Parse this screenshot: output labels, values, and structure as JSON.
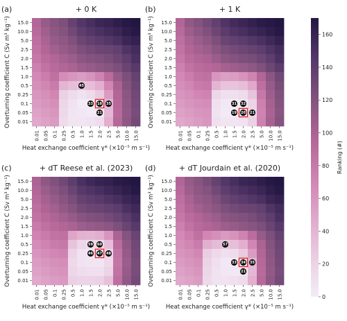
{
  "chart_data": {
    "type": "heatmap",
    "shared": {
      "x_tick_labels": [
        "0.01",
        "0.05",
        "0.1",
        "0.25",
        "0.5",
        "1.0",
        "1.5",
        "2.0",
        "2.5",
        "5.0",
        "10.0",
        "15.0"
      ],
      "y_tick_labels": [
        "15.0",
        "10.0",
        "5.0",
        "2.5",
        "2.0",
        "1.5",
        "1.0",
        "0.5",
        "0.25",
        "0.1",
        "0.05",
        "0.01"
      ],
      "xlabel": "Heat exchange coefficient γ* (×10⁻⁵ m s⁻¹)",
      "ylabel": "Overturning coefficient C (Sv m³ kg⁻¹)",
      "colorbar": {
        "label": "Ranking (#)",
        "ticks": [
          "0",
          "20",
          "40",
          "60",
          "80",
          "100",
          "120",
          "140",
          "160"
        ],
        "range": [
          0,
          170
        ],
        "low_color": "#f3ecf7",
        "mid_color": "#c66f9e",
        "high_color": "#231643"
      }
    },
    "panels": [
      {
        "tag": "(a)",
        "title": "+ 0 K",
        "annotations": [
          {
            "x": "1.0",
            "y": "0.5",
            "label": "45"
          },
          {
            "x": "1.5",
            "y": "0.1",
            "label": "33"
          },
          {
            "x": "2.0",
            "y": "0.1",
            "label": "18",
            "highlight": true
          },
          {
            "x": "2.5",
            "y": "0.1",
            "label": "35"
          },
          {
            "x": "2.0",
            "y": "0.05",
            "label": "21"
          }
        ],
        "values": [
          [
            95,
            110,
            118,
            124,
            136,
            146,
            152,
            158,
            160,
            164,
            168,
            170
          ],
          [
            92,
            105,
            114,
            120,
            130,
            140,
            146,
            150,
            154,
            158,
            164,
            168
          ],
          [
            88,
            100,
            110,
            114,
            122,
            132,
            138,
            142,
            146,
            150,
            158,
            162
          ],
          [
            84,
            96,
            104,
            110,
            116,
            124,
            128,
            132,
            134,
            138,
            148,
            154
          ],
          [
            80,
            90,
            96,
            102,
            108,
            116,
            120,
            122,
            126,
            132,
            140,
            150
          ],
          [
            74,
            84,
            92,
            96,
            100,
            106,
            110,
            114,
            118,
            124,
            134,
            144
          ],
          [
            68,
            76,
            86,
            66,
            60,
            56,
            62,
            72,
            90,
            110,
            124,
            136
          ],
          [
            64,
            70,
            78,
            40,
            34,
            30,
            34,
            44,
            70,
            100,
            120,
            132
          ],
          [
            60,
            64,
            70,
            22,
            14,
            8,
            14,
            26,
            56,
            96,
            116,
            130
          ],
          [
            56,
            60,
            64,
            18,
            8,
            2,
            1,
            2,
            40,
            94,
            114,
            128
          ],
          [
            52,
            56,
            60,
            16,
            6,
            3,
            2,
            4,
            38,
            92,
            112,
            126
          ],
          [
            48,
            52,
            56,
            14,
            6,
            6,
            8,
            12,
            44,
            94,
            114,
            128
          ]
        ]
      },
      {
        "tag": "(b)",
        "title": "+ 1 K",
        "annotations": [
          {
            "x": "1.5",
            "y": "0.1",
            "label": "31"
          },
          {
            "x": "2.0",
            "y": "0.1",
            "label": "32"
          },
          {
            "x": "1.5",
            "y": "0.05",
            "label": "19"
          },
          {
            "x": "2.0",
            "y": "0.05",
            "label": "20",
            "highlight": true
          },
          {
            "x": "2.5",
            "y": "0.05",
            "label": "21"
          }
        ],
        "values": [
          [
            96,
            112,
            120,
            128,
            138,
            148,
            154,
            158,
            162,
            166,
            168,
            170
          ],
          [
            92,
            106,
            114,
            122,
            132,
            142,
            148,
            152,
            156,
            160,
            164,
            168
          ],
          [
            88,
            100,
            108,
            114,
            124,
            134,
            138,
            142,
            146,
            150,
            156,
            162
          ],
          [
            84,
            96,
            102,
            108,
            116,
            124,
            128,
            132,
            136,
            140,
            148,
            154
          ],
          [
            80,
            90,
            96,
            100,
            108,
            116,
            120,
            124,
            126,
            132,
            140,
            150
          ],
          [
            74,
            84,
            90,
            94,
            96,
            102,
            106,
            110,
            114,
            122,
            132,
            142
          ],
          [
            68,
            76,
            84,
            86,
            60,
            54,
            56,
            62,
            72,
            96,
            116,
            130
          ],
          [
            64,
            70,
            78,
            80,
            40,
            30,
            30,
            34,
            48,
            88,
            110,
            126
          ],
          [
            60,
            64,
            70,
            72,
            18,
            10,
            10,
            14,
            30,
            80,
            106,
            122
          ],
          [
            56,
            60,
            64,
            66,
            10,
            3,
            2,
            4,
            20,
            74,
            102,
            120
          ],
          [
            52,
            56,
            60,
            62,
            8,
            2,
            1,
            2,
            18,
            72,
            100,
            118
          ],
          [
            48,
            52,
            56,
            60,
            10,
            6,
            6,
            8,
            22,
            74,
            102,
            120
          ]
        ]
      },
      {
        "tag": "(c)",
        "title": "+ dT Reese et al. (2023)",
        "annotations": [
          {
            "x": "1.5",
            "y": "0.5",
            "label": "59"
          },
          {
            "x": "2.0",
            "y": "0.5",
            "label": "60"
          },
          {
            "x": "1.5",
            "y": "0.25",
            "label": "46"
          },
          {
            "x": "2.0",
            "y": "0.25",
            "label": "47",
            "highlight": true
          },
          {
            "x": "2.5",
            "y": "0.25",
            "label": "48"
          }
        ],
        "values": [
          [
            100,
            114,
            122,
            130,
            140,
            150,
            156,
            160,
            162,
            166,
            168,
            170
          ],
          [
            96,
            108,
            116,
            124,
            134,
            144,
            148,
            152,
            156,
            160,
            164,
            168
          ],
          [
            92,
            102,
            110,
            118,
            126,
            136,
            140,
            144,
            148,
            152,
            158,
            162
          ],
          [
            88,
            98,
            104,
            112,
            120,
            128,
            132,
            134,
            138,
            142,
            150,
            156
          ],
          [
            84,
            92,
            98,
            104,
            110,
            118,
            122,
            124,
            128,
            134,
            142,
            150
          ],
          [
            78,
            86,
            92,
            96,
            100,
            106,
            110,
            112,
            116,
            124,
            134,
            144
          ],
          [
            72,
            78,
            84,
            86,
            50,
            42,
            40,
            44,
            60,
            100,
            120,
            134
          ],
          [
            66,
            72,
            78,
            80,
            30,
            18,
            14,
            16,
            34,
            90,
            114,
            130
          ],
          [
            60,
            66,
            70,
            72,
            20,
            8,
            4,
            2,
            18,
            84,
            110,
            128
          ],
          [
            56,
            60,
            64,
            66,
            16,
            8,
            6,
            6,
            16,
            82,
            108,
            126
          ],
          [
            52,
            56,
            60,
            62,
            18,
            12,
            10,
            10,
            20,
            84,
            110,
            126
          ],
          [
            48,
            52,
            56,
            58,
            22,
            20,
            20,
            22,
            32,
            88,
            112,
            128
          ]
        ]
      },
      {
        "tag": "(d)",
        "title": "+ dT Jourdain et al. (2020)",
        "annotations": [
          {
            "x": "1.0",
            "y": "0.5",
            "label": "57"
          },
          {
            "x": "1.5",
            "y": "0.1",
            "label": "33"
          },
          {
            "x": "2.0",
            "y": "0.1",
            "label": "34",
            "highlight": true
          },
          {
            "x": "2.5",
            "y": "0.1",
            "label": "35"
          },
          {
            "x": "2.0",
            "y": "0.05",
            "label": "21"
          }
        ],
        "values": [
          [
            96,
            110,
            118,
            126,
            136,
            146,
            152,
            158,
            160,
            164,
            168,
            170
          ],
          [
            92,
            106,
            114,
            120,
            130,
            140,
            146,
            150,
            154,
            158,
            164,
            168
          ],
          [
            88,
            100,
            110,
            114,
            122,
            132,
            138,
            142,
            146,
            150,
            158,
            162
          ],
          [
            84,
            96,
            104,
            110,
            116,
            124,
            128,
            132,
            134,
            138,
            148,
            154
          ],
          [
            80,
            90,
            96,
            102,
            108,
            116,
            120,
            122,
            126,
            132,
            140,
            150
          ],
          [
            74,
            84,
            92,
            96,
            100,
            106,
            110,
            114,
            118,
            124,
            134,
            144
          ],
          [
            68,
            76,
            86,
            70,
            64,
            58,
            62,
            72,
            90,
            110,
            124,
            136
          ],
          [
            64,
            70,
            78,
            44,
            36,
            30,
            34,
            44,
            70,
            100,
            120,
            132
          ],
          [
            60,
            64,
            70,
            24,
            16,
            10,
            14,
            26,
            56,
            96,
            116,
            130
          ],
          [
            56,
            60,
            64,
            20,
            10,
            3,
            2,
            3,
            40,
            94,
            114,
            128
          ],
          [
            52,
            56,
            60,
            18,
            8,
            4,
            3,
            5,
            38,
            92,
            112,
            126
          ],
          [
            48,
            52,
            56,
            16,
            8,
            8,
            10,
            14,
            44,
            94,
            114,
            128
          ]
        ]
      }
    ]
  }
}
